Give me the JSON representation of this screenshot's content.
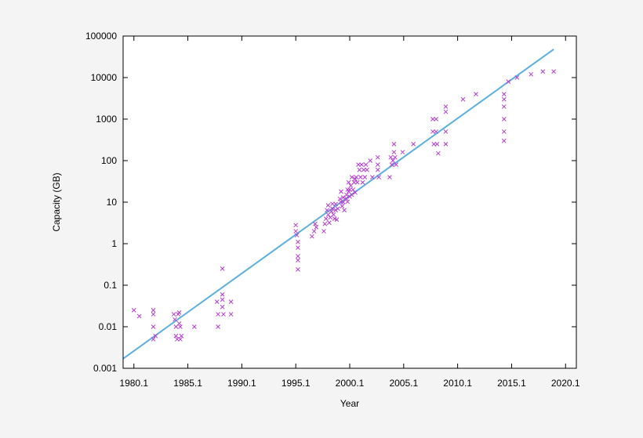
{
  "chart_data": {
    "type": "scatter",
    "title": "",
    "xlabel": "Year",
    "ylabel": "Capacity (GB)",
    "xlim": [
      1979.1,
      2021.1
    ],
    "ylim": [
      0.001,
      100000
    ],
    "yscale": "log",
    "grid": false,
    "legend": "none",
    "x_ticks": [
      1980.1,
      1985.1,
      1990.1,
      1995.1,
      2000.1,
      2005.1,
      2010.1,
      2015.1,
      2020.1
    ],
    "x_tick_labels": [
      "1980.1",
      "1985.1",
      "1990.1",
      "1995.1",
      "2000.1",
      "2005.1",
      "2010.1",
      "2015.1",
      "2020.1"
    ],
    "y_ticks": [
      0.001,
      0.01,
      0.1,
      1,
      10,
      100,
      1000,
      10000,
      100000
    ],
    "y_tick_labels": [
      "0.001",
      "0.01",
      "0.1",
      "1",
      "10",
      "100",
      "1000",
      "10000",
      "100000"
    ],
    "colors": {
      "points": "#b43cd0",
      "trend": "#5aafdf",
      "axis": "#000000",
      "plot_bg": "#ffffff"
    },
    "series": [
      {
        "name": "",
        "marker": "x",
        "points": [
          [
            1980.1,
            0.025
          ],
          [
            1980.6,
            0.018
          ],
          [
            1981.9,
            0.025
          ],
          [
            1981.9,
            0.02
          ],
          [
            1981.9,
            0.01
          ],
          [
            1981.9,
            0.005
          ],
          [
            1982.1,
            0.006
          ],
          [
            1983.8,
            0.02
          ],
          [
            1983.9,
            0.015
          ],
          [
            1984.0,
            0.01
          ],
          [
            1984.0,
            0.006
          ],
          [
            1984.1,
            0.005
          ],
          [
            1984.2,
            0.02
          ],
          [
            1984.3,
            0.022
          ],
          [
            1984.3,
            0.012
          ],
          [
            1984.4,
            0.01
          ],
          [
            1984.4,
            0.005
          ],
          [
            1984.5,
            0.006
          ],
          [
            1985.7,
            0.01
          ],
          [
            1987.8,
            0.04
          ],
          [
            1987.9,
            0.02
          ],
          [
            1987.9,
            0.01
          ],
          [
            1988.3,
            0.25
          ],
          [
            1988.3,
            0.06
          ],
          [
            1988.3,
            0.045
          ],
          [
            1988.3,
            0.03
          ],
          [
            1988.4,
            0.02
          ],
          [
            1989.1,
            0.04
          ],
          [
            1989.1,
            0.02
          ],
          [
            1995.1,
            2.8
          ],
          [
            1995.1,
            2.0
          ],
          [
            1995.2,
            1.6
          ],
          [
            1995.3,
            1.1
          ],
          [
            1995.3,
            0.8
          ],
          [
            1995.3,
            0.5
          ],
          [
            1995.3,
            0.4
          ],
          [
            1995.3,
            0.24
          ],
          [
            1996.6,
            1.5
          ],
          [
            1996.8,
            2.0
          ],
          [
            1996.9,
            3.0
          ],
          [
            1997.0,
            2.5
          ],
          [
            1997.7,
            2.0
          ],
          [
            1997.8,
            3.0
          ],
          [
            1997.9,
            4.0
          ],
          [
            1998.0,
            6.4
          ],
          [
            1998.1,
            8.4
          ],
          [
            1998.1,
            5.0
          ],
          [
            1998.2,
            3.2
          ],
          [
            1998.3,
            4.3
          ],
          [
            1998.4,
            6.0
          ],
          [
            1998.5,
            7.0
          ],
          [
            1998.5,
            9.1
          ],
          [
            1998.6,
            5.0
          ],
          [
            1998.7,
            4.0
          ],
          [
            1998.8,
            6.4
          ],
          [
            1998.8,
            9.0
          ],
          [
            1998.9,
            3.8
          ],
          [
            1999.0,
            7.0
          ],
          [
            1999.2,
            12.0
          ],
          [
            1999.3,
            10.0
          ],
          [
            1999.3,
            18.0
          ],
          [
            1999.4,
            8.0
          ],
          [
            1999.5,
            10.0
          ],
          [
            1999.5,
            13.0
          ],
          [
            1999.6,
            6.4
          ],
          [
            1999.8,
            15.0
          ],
          [
            1999.8,
            12.0
          ],
          [
            1999.9,
            20.0
          ],
          [
            1999.9,
            10.2
          ],
          [
            2000.0,
            30.0
          ],
          [
            2000.0,
            18.0
          ],
          [
            2000.1,
            13.6
          ],
          [
            2000.1,
            20.0
          ],
          [
            2000.2,
            25.0
          ],
          [
            2000.3,
            40.0
          ],
          [
            2000.3,
            15.0
          ],
          [
            2000.4,
            20.0
          ],
          [
            2000.5,
            30.0
          ],
          [
            2000.6,
            36.0
          ],
          [
            2000.6,
            17.0
          ],
          [
            2000.7,
            40.0
          ],
          [
            2000.8,
            30.0
          ],
          [
            2000.9,
            80.0
          ],
          [
            2001.0,
            60.0
          ],
          [
            2001.1,
            40.0
          ],
          [
            2001.2,
            80.0
          ],
          [
            2001.3,
            30.0
          ],
          [
            2001.4,
            60.0
          ],
          [
            2001.5,
            40.0
          ],
          [
            2001.6,
            80.0
          ],
          [
            2001.7,
            60.0
          ],
          [
            2002.0,
            100.0
          ],
          [
            2002.2,
            40.0
          ],
          [
            2002.7,
            120.0
          ],
          [
            2002.7,
            80.0
          ],
          [
            2002.7,
            60.0
          ],
          [
            2002.8,
            40.0
          ],
          [
            2003.8,
            40.0
          ],
          [
            2003.9,
            120.0
          ],
          [
            2004.0,
            80.0
          ],
          [
            2004.1,
            100.0
          ],
          [
            2004.2,
            160.0
          ],
          [
            2004.2,
            250.0
          ],
          [
            2004.3,
            120.0
          ],
          [
            2004.4,
            80.0
          ],
          [
            2005.0,
            160.0
          ],
          [
            2006.0,
            250.0
          ],
          [
            2007.8,
            1000.0
          ],
          [
            2007.8,
            500.0
          ],
          [
            2007.9,
            250.0
          ],
          [
            2008.1,
            1000.0
          ],
          [
            2008.1,
            500.0
          ],
          [
            2008.2,
            250.0
          ],
          [
            2008.3,
            150.0
          ],
          [
            2009.0,
            2000.0
          ],
          [
            2009.0,
            1500.0
          ],
          [
            2009.0,
            500.0
          ],
          [
            2009.0,
            250.0
          ],
          [
            2010.6,
            3000.0
          ],
          [
            2011.8,
            4000.0
          ],
          [
            2014.4,
            4000.0
          ],
          [
            2014.4,
            3000.0
          ],
          [
            2014.4,
            2000.0
          ],
          [
            2014.4,
            1000.0
          ],
          [
            2014.4,
            500.0
          ],
          [
            2014.4,
            300.0
          ],
          [
            2014.8,
            8000.0
          ],
          [
            2015.6,
            10000.0
          ],
          [
            2016.9,
            12000.0
          ],
          [
            2018.0,
            14000.0
          ],
          [
            2019.0,
            14000.0
          ]
        ]
      }
    ],
    "trend_line": {
      "x": [
        1979.1,
        2019.0
      ],
      "y": [
        0.0017,
        48000
      ]
    }
  }
}
